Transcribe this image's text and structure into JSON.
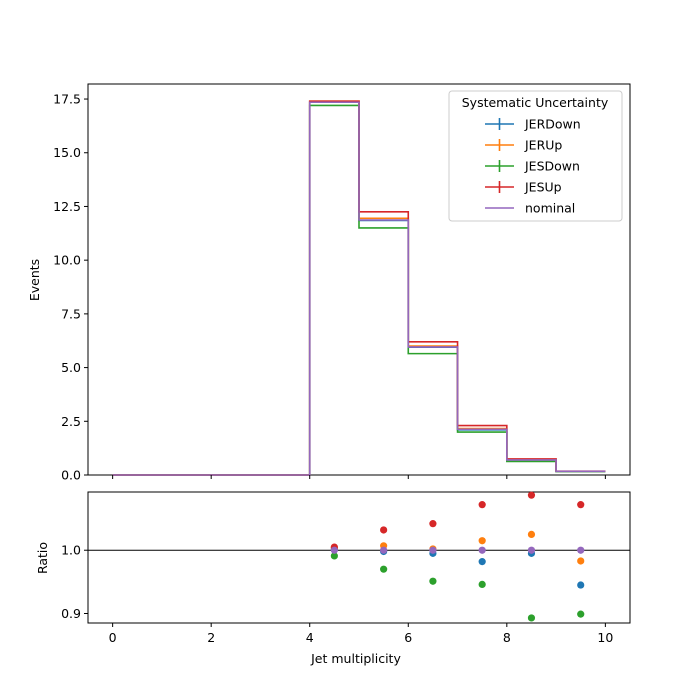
{
  "chart_data": {
    "type": "step",
    "title": "",
    "xlabel": "Jet multiplicity",
    "ylabel_top": "Events",
    "ylabel_bottom": "Ratio",
    "xlim": [
      -0.5,
      10.5
    ],
    "ylim_top": [
      0,
      18.2
    ],
    "ylim_bottom": [
      0.885,
      1.092
    ],
    "x_ticks": [
      "0",
      "2",
      "4",
      "6",
      "8",
      "10"
    ],
    "y_ticks_top": [
      "0.0",
      "2.5",
      "5.0",
      "7.5",
      "10.0",
      "12.5",
      "15.0",
      "17.5"
    ],
    "y_ticks_bottom": [
      "0.9",
      "1.0"
    ],
    "bin_edges": [
      0,
      1,
      2,
      3,
      4,
      5,
      6,
      7,
      8,
      9,
      10
    ],
    "legend": {
      "title": "Systematic Uncertainty",
      "location": "upper right"
    },
    "series": [
      {
        "name": "JERDown",
        "color": "#1f77b4",
        "values": [
          0,
          0,
          0,
          0,
          17.35,
          11.85,
          5.95,
          2.1,
          0.7,
          0.17
        ],
        "ratio": [
          null,
          null,
          null,
          null,
          1.002,
          0.998,
          0.995,
          0.982,
          0.995,
          0.945
        ]
      },
      {
        "name": "JERUp",
        "color": "#ff7f0e",
        "values": [
          0,
          0,
          0,
          0,
          17.4,
          11.95,
          6.0,
          2.16,
          0.72,
          0.17
        ],
        "ratio": [
          null,
          null,
          null,
          null,
          1.004,
          1.007,
          1.002,
          1.015,
          1.025,
          0.983
        ]
      },
      {
        "name": "JESDown",
        "color": "#2ca02c",
        "values": [
          0,
          0,
          0,
          0,
          17.2,
          11.5,
          5.65,
          2.0,
          0.63,
          0.16
        ],
        "ratio": [
          null,
          null,
          null,
          null,
          0.991,
          0.97,
          0.951,
          0.946,
          0.893,
          0.899
        ]
      },
      {
        "name": "JESUp",
        "color": "#d62728",
        "values": [
          0,
          0,
          0,
          0,
          17.4,
          12.25,
          6.2,
          2.3,
          0.75,
          0.18
        ],
        "ratio": [
          null,
          null,
          null,
          null,
          1.005,
          1.032,
          1.042,
          1.072,
          1.087,
          1.072
        ]
      },
      {
        "name": "nominal",
        "color": "#9467bd",
        "values": [
          0,
          0,
          0,
          0,
          17.35,
          11.87,
          5.96,
          2.13,
          0.7,
          0.17
        ],
        "ratio": [
          null,
          null,
          null,
          null,
          1.0,
          1.0,
          1.0,
          1.0,
          1.0,
          1.0
        ]
      }
    ]
  }
}
